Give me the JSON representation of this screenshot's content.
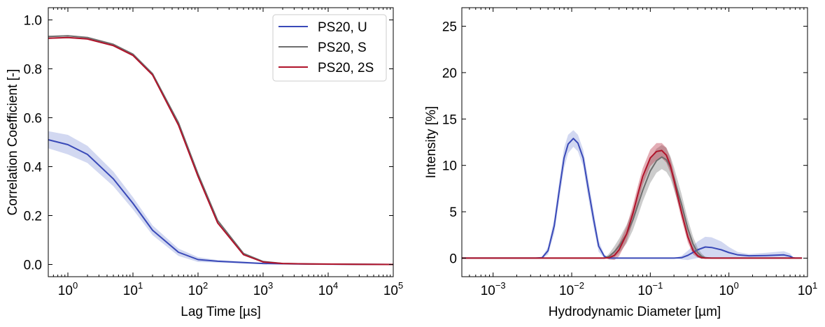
{
  "chart_data": [
    {
      "type": "line",
      "xlabel": "Lag Time [µs]",
      "ylabel": "Correlation Coefficient [-]",
      "xscale": "log",
      "xlim": [
        0.5,
        100000
      ],
      "ylim": [
        -0.05,
        1.05
      ],
      "xticks": [
        {
          "base": "10",
          "exp": "0",
          "value": 1
        },
        {
          "base": "10",
          "exp": "1",
          "value": 10
        },
        {
          "base": "10",
          "exp": "2",
          "value": 100
        },
        {
          "base": "10",
          "exp": "3",
          "value": 1000
        },
        {
          "base": "10",
          "exp": "4",
          "value": 10000
        },
        {
          "base": "10",
          "exp": "5",
          "value": 100000
        }
      ],
      "yticks": [
        {
          "label": "0.0",
          "value": 0
        },
        {
          "label": "0.2",
          "value": 0.2
        },
        {
          "label": "0.4",
          "value": 0.4
        },
        {
          "label": "0.6",
          "value": 0.6
        },
        {
          "label": "0.8",
          "value": 0.8
        },
        {
          "label": "1.0",
          "value": 1.0
        }
      ],
      "legend_position": "top-right",
      "series": [
        {
          "name": "PS20, U",
          "color": "#3949b8",
          "band_color": "#7f8ed8",
          "x": [
            0.5,
            1,
            2,
            5,
            10,
            20,
            50,
            100,
            200,
            500,
            1000,
            3000,
            10000,
            100000
          ],
          "y": [
            0.51,
            0.49,
            0.45,
            0.35,
            0.25,
            0.14,
            0.05,
            0.02,
            0.013,
            0.008,
            0.004,
            0.002,
            0.001,
            0.0
          ],
          "band": [
            0.035,
            0.04,
            0.035,
            0.03,
            0.025,
            0.02,
            0.015,
            0.01,
            0.005,
            0.004,
            0.003,
            0.002,
            0.002,
            0.002
          ]
        },
        {
          "name": "PS20, S",
          "color": "#6e6e6e",
          "band_color": "#6e6e6e",
          "x": [
            0.5,
            1,
            2,
            5,
            10,
            20,
            50,
            100,
            200,
            500,
            1000,
            2000,
            5000,
            100000
          ],
          "y": [
            0.932,
            0.935,
            0.928,
            0.9,
            0.86,
            0.78,
            0.58,
            0.37,
            0.18,
            0.045,
            0.012,
            0.004,
            0.002,
            0.0
          ],
          "band": [
            0.003,
            0.003,
            0.003,
            0.003,
            0.003,
            0.003,
            0.003,
            0.003,
            0.003,
            0.003,
            0.002,
            0.002,
            0.002,
            0.002
          ]
        },
        {
          "name": "PS20, 2S",
          "color": "#b0132a",
          "band_color": "#b0132a",
          "x": [
            0.5,
            1,
            2,
            5,
            10,
            20,
            50,
            100,
            200,
            500,
            1000,
            2000,
            5000,
            100000
          ],
          "y": [
            0.925,
            0.928,
            0.922,
            0.895,
            0.855,
            0.775,
            0.57,
            0.36,
            0.17,
            0.04,
            0.01,
            0.004,
            0.002,
            0.0
          ],
          "band": [
            0.003,
            0.003,
            0.003,
            0.003,
            0.003,
            0.003,
            0.003,
            0.003,
            0.003,
            0.003,
            0.002,
            0.002,
            0.002,
            0.002
          ]
        }
      ]
    },
    {
      "type": "line",
      "xlabel": "Hydrodynamic Diameter [µm]",
      "ylabel": "Intensity [%]",
      "xscale": "log",
      "xlim": [
        0.0004,
        10
      ],
      "ylim": [
        -2,
        27
      ],
      "xticks": [
        {
          "base": "10",
          "exp": "−3",
          "value": 0.001
        },
        {
          "base": "10",
          "exp": "−2",
          "value": 0.01
        },
        {
          "base": "10",
          "exp": "−1",
          "value": 0.1
        },
        {
          "base": "10",
          "exp": "0",
          "value": 1
        },
        {
          "base": "10",
          "exp": "1",
          "value": 10
        }
      ],
      "yticks": [
        {
          "label": "0",
          "value": 0
        },
        {
          "label": "5",
          "value": 5
        },
        {
          "label": "10",
          "value": 10
        },
        {
          "label": "15",
          "value": 15
        },
        {
          "label": "20",
          "value": 20
        },
        {
          "label": "25",
          "value": 25
        }
      ],
      "series": [
        {
          "name": "PS20, U",
          "color": "#3949b8",
          "band_color": "#7f8ed8",
          "x": [
            0.0004,
            0.0035,
            0.0042,
            0.005,
            0.006,
            0.007,
            0.008,
            0.009,
            0.0105,
            0.012,
            0.014,
            0.016,
            0.019,
            0.022,
            0.026,
            0.03,
            0.2,
            0.25,
            0.3,
            0.4,
            0.5,
            0.6,
            0.8,
            1.0,
            1.3,
            1.8,
            3,
            5,
            6,
            6.5,
            7,
            8.5
          ],
          "y": [
            0,
            0,
            0.05,
            0.8,
            3.5,
            7.5,
            10.8,
            12.3,
            12.9,
            12.4,
            10.8,
            7.8,
            4.2,
            1.3,
            0.2,
            0,
            0,
            0.05,
            0.3,
            0.9,
            1.2,
            1.15,
            0.9,
            0.6,
            0.35,
            0.25,
            0.28,
            0.35,
            0.2,
            0.05,
            0,
            0
          ],
          "band": [
            0,
            0,
            0.1,
            0.4,
            0.8,
            1.0,
            1.1,
            1.0,
            0.9,
            0.9,
            0.9,
            1.0,
            0.9,
            0.6,
            0.2,
            0,
            0,
            0.2,
            0.5,
            0.9,
            1.1,
            1.1,
            0.9,
            0.6,
            0.3,
            0.2,
            0.3,
            0.4,
            0.3,
            0.1,
            0,
            0
          ]
        },
        {
          "name": "PS20, S",
          "color": "#6e6e6e",
          "band_color": "#6e6e6e",
          "x": [
            0.0004,
            0.026,
            0.03,
            0.035,
            0.04,
            0.05,
            0.06,
            0.07,
            0.08,
            0.1,
            0.12,
            0.14,
            0.16,
            0.18,
            0.2,
            0.25,
            0.3,
            0.35,
            0.4,
            0.45,
            0.5,
            0.6,
            8.5
          ],
          "y": [
            0,
            0,
            0.2,
            0.7,
            1.3,
            2.6,
            4.1,
            5.8,
            7.3,
            9.4,
            10.5,
            10.9,
            10.6,
            9.8,
            8.6,
            5.8,
            3.2,
            1.5,
            0.6,
            0.2,
            0.05,
            0,
            0
          ],
          "band": [
            0,
            0,
            0.3,
            0.6,
            0.8,
            1.0,
            1.1,
            1.2,
            1.2,
            1.3,
            1.3,
            1.3,
            1.3,
            1.2,
            1.2,
            1.1,
            1.0,
            0.8,
            0.5,
            0.3,
            0.1,
            0,
            0
          ]
        },
        {
          "name": "PS20, 2S",
          "color": "#b0132a",
          "band_color": "#b0132a",
          "x": [
            0.0004,
            0.026,
            0.03,
            0.035,
            0.04,
            0.05,
            0.06,
            0.07,
            0.08,
            0.1,
            0.12,
            0.14,
            0.16,
            0.18,
            0.2,
            0.25,
            0.3,
            0.35,
            0.4,
            0.45,
            0.5,
            0.6,
            8.5
          ],
          "y": [
            0,
            0,
            0.05,
            0.3,
            0.9,
            2.6,
            4.8,
            7.0,
            8.8,
            10.8,
            11.5,
            11.6,
            11.1,
            10.0,
            8.4,
            4.9,
            2.3,
            0.8,
            0.25,
            0.05,
            0,
            0,
            0
          ],
          "band": [
            0,
            0,
            0.2,
            0.5,
            0.7,
            0.8,
            0.9,
            0.9,
            0.9,
            0.9,
            0.9,
            0.8,
            0.8,
            0.8,
            0.8,
            0.7,
            0.6,
            0.4,
            0.2,
            0.1,
            0,
            0,
            0
          ]
        }
      ]
    }
  ]
}
